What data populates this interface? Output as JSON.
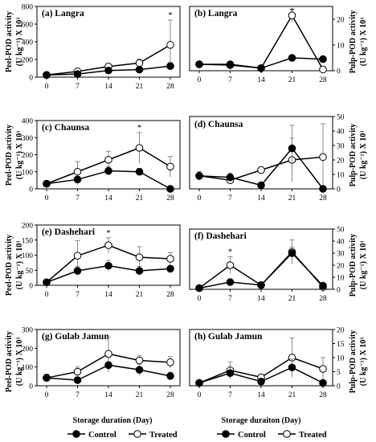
{
  "figure": {
    "y_label_left_line1": "Peel-POD activity",
    "y_label_left_line2": "(U kg⁻¹) X 10³",
    "y_label_right_line1": "Pulp-POD activity",
    "y_label_right_line2": "(U kg⁻¹) X 10³",
    "x_label_left": "Storage duration (Day)",
    "x_label_right": "Storage duraiton (Day)",
    "legend": {
      "control": "Control",
      "treated": "Treated"
    },
    "significance_mark": "*",
    "colors": {
      "control": "#000000",
      "treated": "#ffffff",
      "line": "#000000",
      "error": "#808080",
      "frame": "#000000"
    }
  },
  "chart_data": [
    {
      "type": "line",
      "title": "(a) Langra",
      "y_axis": "left",
      "x": [
        0,
        7,
        14,
        21,
        28
      ],
      "ylim": [
        0,
        800
      ],
      "yticks": [
        0,
        200,
        400,
        600,
        800
      ],
      "series": [
        {
          "name": "Control",
          "values": [
            25,
            35,
            75,
            85,
            125
          ],
          "err": [
            0,
            8,
            12,
            15,
            40
          ]
        },
        {
          "name": "Treated",
          "values": [
            25,
            65,
            120,
            160,
            365
          ],
          "err": [
            0,
            20,
            25,
            45,
            280
          ]
        }
      ],
      "significance": [
        28
      ]
    },
    {
      "type": "line",
      "title": "(b) Langra",
      "y_axis": "right",
      "x": [
        0,
        7,
        14,
        21,
        28
      ],
      "ylim": [
        0,
        25
      ],
      "yticks": [
        0,
        10,
        20
      ],
      "series": [
        {
          "name": "Control",
          "values": [
            2.5,
            2.2,
            1,
            5,
            4.5
          ],
          "err": [
            0.3,
            0.3,
            0.3,
            0.8,
            0.5
          ]
        },
        {
          "name": "Treated",
          "values": [
            2.5,
            2.5,
            1,
            21.5,
            0.5
          ],
          "err": [
            0.3,
            0.5,
            0.3,
            2.5,
            0.3
          ]
        }
      ],
      "significance": [
        21
      ]
    },
    {
      "type": "line",
      "title": "(c) Chaunsa",
      "y_axis": "left",
      "x": [
        0,
        7,
        14,
        21,
        28
      ],
      "ylim": [
        0,
        400
      ],
      "yticks": [
        0,
        100,
        200,
        300,
        400
      ],
      "series": [
        {
          "name": "Control",
          "values": [
            30,
            55,
            105,
            100,
            0
          ],
          "err": [
            10,
            30,
            25,
            20,
            0
          ]
        },
        {
          "name": "Treated",
          "values": [
            30,
            100,
            170,
            240,
            130
          ],
          "err": [
            10,
            60,
            50,
            90,
            60
          ]
        }
      ],
      "significance": [
        21
      ]
    },
    {
      "type": "line",
      "title": "(d) Chaunsa",
      "y_axis": "right",
      "x": [
        0,
        7,
        14,
        21,
        28
      ],
      "ylim": [
        0,
        50
      ],
      "yticks": [
        0,
        10,
        20,
        30,
        40,
        50
      ],
      "series": [
        {
          "name": "Control",
          "values": [
            9,
            8,
            2.5,
            28,
            0
          ],
          "err": [
            3,
            3,
            0.5,
            16,
            0
          ]
        },
        {
          "name": "Treated",
          "values": [
            9,
            6,
            13,
            20,
            22
          ],
          "err": [
            3,
            2,
            2,
            15,
            23
          ]
        }
      ],
      "significance": []
    },
    {
      "type": "line",
      "title": "(e) Dashehari",
      "y_axis": "left",
      "x": [
        0,
        7,
        14,
        21,
        28
      ],
      "ylim": [
        0,
        200
      ],
      "yticks": [
        0,
        50,
        100,
        150,
        200
      ],
      "series": [
        {
          "name": "Control",
          "values": [
            10,
            48,
            65,
            48,
            55
          ],
          "err": [
            0,
            15,
            18,
            15,
            10
          ]
        },
        {
          "name": "Treated",
          "values": [
            10,
            98,
            133,
            93,
            88
          ],
          "err": [
            0,
            50,
            25,
            35,
            20
          ]
        }
      ],
      "significance": [
        14
      ]
    },
    {
      "type": "line",
      "title": "(f) Dashehari",
      "y_axis": "right",
      "x": [
        0,
        7,
        14,
        21,
        28
      ],
      "ylim": [
        0,
        50
      ],
      "yticks": [
        0,
        10,
        20,
        30,
        40,
        50
      ],
      "series": [
        {
          "name": "Control",
          "values": [
            1,
            6,
            3.5,
            30,
            3
          ],
          "err": [
            0.5,
            2,
            1,
            5,
            1
          ]
        },
        {
          "name": "Treated",
          "values": [
            1,
            20,
            3.5,
            31,
            2
          ],
          "err": [
            0.5,
            7,
            1,
            10,
            1
          ]
        }
      ],
      "significance": [
        7
      ]
    },
    {
      "type": "line",
      "title": "(g) Gulab Jamun",
      "y_axis": "left",
      "x": [
        0,
        7,
        14,
        21,
        28
      ],
      "ylim": [
        0,
        300
      ],
      "yticks": [
        0,
        100,
        200,
        300
      ],
      "series": [
        {
          "name": "Control",
          "values": [
            42,
            30,
            110,
            85,
            52
          ],
          "err": [
            20,
            15,
            40,
            30,
            20
          ]
        },
        {
          "name": "Treated",
          "values": [
            42,
            75,
            170,
            135,
            125
          ],
          "err": [
            20,
            25,
            90,
            25,
            30
          ]
        }
      ],
      "significance": []
    },
    {
      "type": "line",
      "title": "(h) Gulab Jamun",
      "y_axis": "right",
      "x": [
        0,
        7,
        14,
        21,
        28
      ],
      "ylim": [
        0,
        20
      ],
      "yticks": [
        0,
        5,
        10,
        15,
        20
      ],
      "series": [
        {
          "name": "Control",
          "values": [
            1,
            4.5,
            1.5,
            6.5,
            1
          ],
          "err": [
            0.5,
            2,
            1,
            3,
            1
          ]
        },
        {
          "name": "Treated",
          "values": [
            1,
            5.5,
            3,
            10,
            6
          ],
          "err": [
            0.5,
            3,
            1,
            7,
            4
          ]
        }
      ],
      "significance": []
    }
  ]
}
